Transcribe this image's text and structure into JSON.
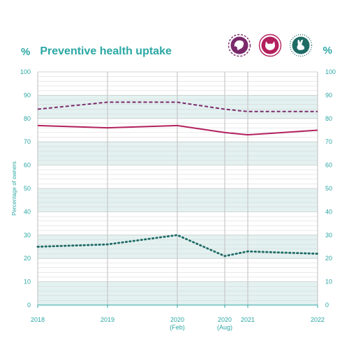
{
  "header": {
    "percent_left": "%",
    "title": "Preventive health uptake",
    "percent_right": "%"
  },
  "legend_icons": [
    {
      "icon": "dog-icon",
      "color": "#7a2a6b",
      "style": "dashed"
    },
    {
      "icon": "cat-icon",
      "color": "#b3205e",
      "style": "solid"
    },
    {
      "icon": "rabbit-icon",
      "color": "#1f6b66",
      "style": "dotted"
    }
  ],
  "colors": {
    "accent": "#2aa7a4",
    "band": "#e3f1f0",
    "grid": "#d4d4d4"
  },
  "chart_data": {
    "type": "line",
    "title": "Preventive health uptake",
    "ylabel": "Percentage of owners",
    "ylim": [
      0,
      100
    ],
    "yticks": [
      0,
      10,
      20,
      30,
      40,
      50,
      60,
      70,
      80,
      90,
      100
    ],
    "x": [
      "2018",
      "2019",
      "2020 (Feb)",
      "2020 (Aug)",
      "2021",
      "2022"
    ],
    "x_labels": [
      {
        "main": "2018",
        "sub": ""
      },
      {
        "main": "2019",
        "sub": ""
      },
      {
        "main": "2020",
        "sub": "(Feb)"
      },
      {
        "main": "2020",
        "sub": "(Aug)"
      },
      {
        "main": "2021",
        "sub": ""
      },
      {
        "main": "2022",
        "sub": ""
      }
    ],
    "series": [
      {
        "icon": "dog-icon",
        "color": "#7a2a6b",
        "style": "dashed",
        "values": [
          84,
          87,
          87,
          84,
          83,
          83
        ]
      },
      {
        "icon": "cat-icon",
        "color": "#b3205e",
        "style": "solid",
        "values": [
          77,
          76,
          77,
          74,
          73,
          75
        ]
      },
      {
        "icon": "rabbit-icon",
        "color": "#1f6b66",
        "style": "dotted",
        "values": [
          25,
          26,
          30,
          21,
          23,
          22
        ]
      }
    ],
    "grid": true
  }
}
